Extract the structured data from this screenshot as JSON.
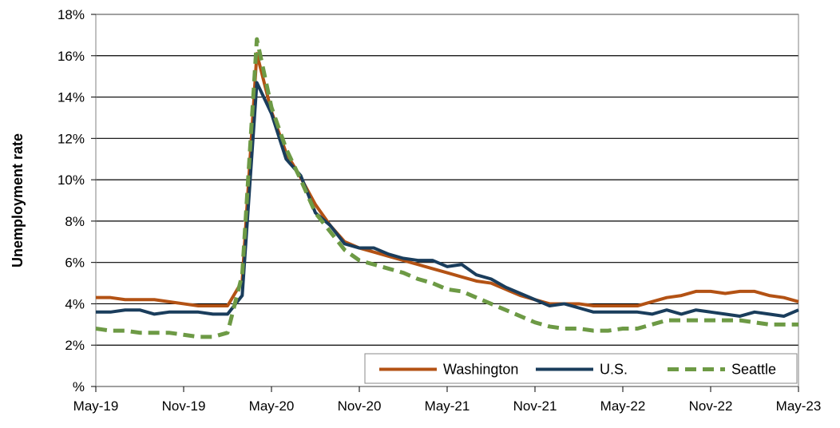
{
  "chart_data": {
    "type": "line",
    "title": "",
    "xlabel": "",
    "ylabel": "Unemployment rate",
    "ylim": [
      0,
      18
    ],
    "yticks": [
      "%",
      "2%",
      "4%",
      "6%",
      "8%",
      "10%",
      "12%",
      "14%",
      "16%",
      "18%"
    ],
    "xlim": [
      "2019-05",
      "2023-05"
    ],
    "xticks": [
      "May-19",
      "Nov-19",
      "May-20",
      "Nov-20",
      "May-21",
      "Nov-21",
      "May-22",
      "Nov-22",
      "May-23"
    ],
    "grid": "horizontal",
    "legend_position": "bottom-right",
    "x": [
      "2019-05",
      "2019-06",
      "2019-07",
      "2019-08",
      "2019-09",
      "2019-10",
      "2019-11",
      "2019-12",
      "2020-01",
      "2020-02",
      "2020-03",
      "2020-04",
      "2020-05",
      "2020-06",
      "2020-07",
      "2020-08",
      "2020-09",
      "2020-10",
      "2020-11",
      "2020-12",
      "2021-01",
      "2021-02",
      "2021-03",
      "2021-04",
      "2021-05",
      "2021-06",
      "2021-07",
      "2021-08",
      "2021-09",
      "2021-10",
      "2021-11",
      "2021-12",
      "2022-01",
      "2022-02",
      "2022-03",
      "2022-04",
      "2022-05",
      "2022-06",
      "2022-07",
      "2022-08",
      "2022-09",
      "2022-10",
      "2022-11",
      "2022-12",
      "2023-01",
      "2023-02",
      "2023-03",
      "2023-04",
      "2023-05"
    ],
    "series": [
      {
        "name": "Washington",
        "color": "#b35214",
        "style": "solid",
        "values": [
          4.3,
          4.3,
          4.2,
          4.2,
          4.2,
          4.1,
          4.0,
          3.9,
          3.9,
          3.9,
          5.1,
          16.1,
          13.3,
          11.3,
          10.1,
          8.8,
          7.8,
          7.0,
          6.7,
          6.5,
          6.3,
          6.1,
          5.9,
          5.7,
          5.5,
          5.3,
          5.1,
          5.0,
          4.7,
          4.4,
          4.2,
          4.0,
          4.0,
          4.0,
          3.9,
          3.9,
          3.9,
          3.9,
          4.1,
          4.3,
          4.4,
          4.6,
          4.6,
          4.5,
          4.6,
          4.6,
          4.4,
          4.3,
          4.1
        ]
      },
      {
        "name": "U.S.",
        "color": "#1a3d5c",
        "style": "solid",
        "values": [
          3.6,
          3.6,
          3.7,
          3.7,
          3.5,
          3.6,
          3.6,
          3.6,
          3.5,
          3.5,
          4.4,
          14.7,
          13.2,
          11.0,
          10.2,
          8.4,
          7.8,
          6.9,
          6.7,
          6.7,
          6.4,
          6.2,
          6.1,
          6.1,
          5.8,
          5.9,
          5.4,
          5.2,
          4.8,
          4.5,
          4.2,
          3.9,
          4.0,
          3.8,
          3.6,
          3.6,
          3.6,
          3.6,
          3.5,
          3.7,
          3.5,
          3.7,
          3.6,
          3.5,
          3.4,
          3.6,
          3.5,
          3.4,
          3.7
        ]
      },
      {
        "name": "Seattle",
        "color": "#6d9a45",
        "style": "dashed",
        "values": [
          2.8,
          2.7,
          2.7,
          2.6,
          2.6,
          2.6,
          2.5,
          2.4,
          2.4,
          2.6,
          5.4,
          16.8,
          13.5,
          11.5,
          10.0,
          8.4,
          7.5,
          6.6,
          6.1,
          5.9,
          5.7,
          5.5,
          5.2,
          5.0,
          4.7,
          4.6,
          4.3,
          4.0,
          3.7,
          3.4,
          3.1,
          2.9,
          2.8,
          2.8,
          2.7,
          2.7,
          2.8,
          2.8,
          3.0,
          3.2,
          3.2,
          3.2,
          3.2,
          3.2,
          3.2,
          3.1,
          3.0,
          3.0,
          3.0
        ]
      }
    ]
  }
}
